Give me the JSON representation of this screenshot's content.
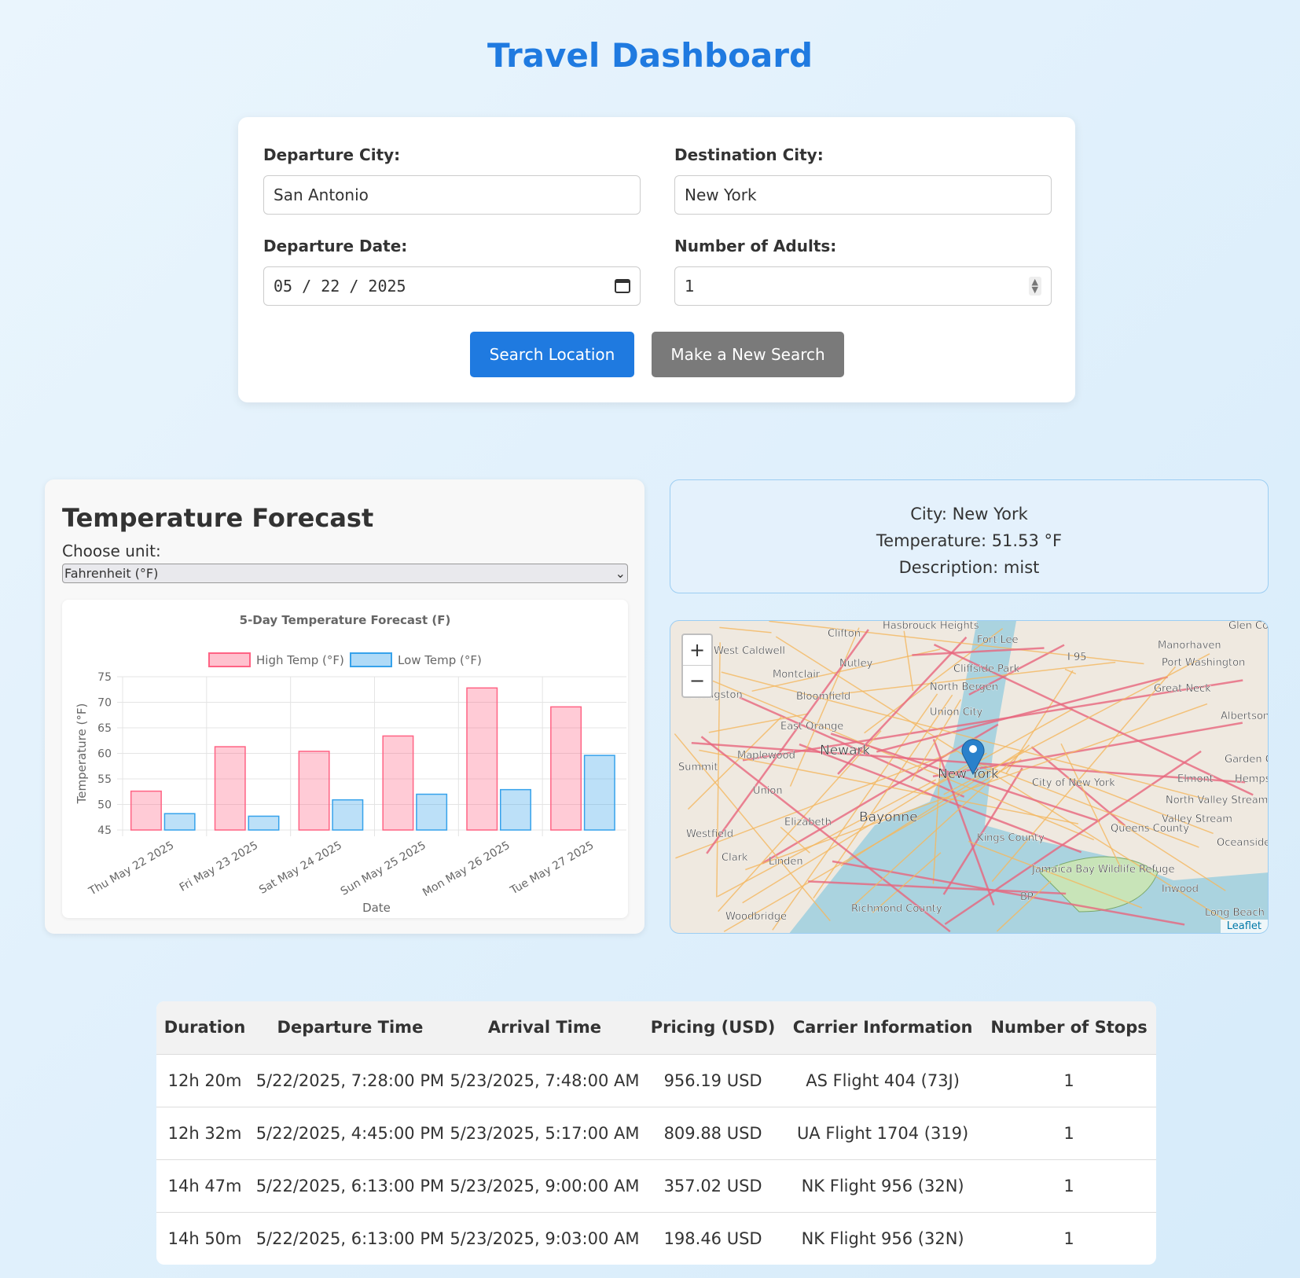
{
  "title": "Travel Dashboard",
  "form": {
    "departure_label": "Departure City:",
    "departure_value": "San Antonio",
    "destination_label": "Destination City:",
    "destination_value": "New York",
    "date_label": "Departure Date:",
    "date_value": "05 / 22 / 2025",
    "adults_label": "Number of Adults:",
    "adults_value": "1",
    "search_button": "Search Location",
    "new_search_button": "Make a New Search"
  },
  "forecast": {
    "heading": "Temperature Forecast",
    "unit_label": "Choose unit:",
    "unit_value": "Fahrenheit (°F)"
  },
  "chart_data": {
    "type": "bar",
    "title": "5-Day Temperature Forecast (F)",
    "xlabel": "Date",
    "ylabel": "Temperature (°F)",
    "ylim": [
      45,
      75
    ],
    "yticks": [
      45,
      50,
      55,
      60,
      65,
      70,
      75
    ],
    "legend": "top",
    "grid": true,
    "categories": [
      "Thu May 22 2025",
      "Fri May 23 2025",
      "Sat May 24 2025",
      "Sun May 25 2025",
      "Mon May 26 2025",
      "Tue May 27 2025"
    ],
    "series": [
      {
        "name": "High Temp (°F)",
        "color": "#ff6384",
        "values": [
          52.6,
          61.3,
          60.4,
          63.4,
          72.8,
          69.1
        ]
      },
      {
        "name": "Low Temp (°F)",
        "color": "#36a2eb",
        "values": [
          48.2,
          47.7,
          50.9,
          52.0,
          52.9,
          59.6
        ]
      }
    ]
  },
  "weather": {
    "city": "City: New York",
    "temperature": "Temperature: 51.53 °F",
    "description": "Description: mist"
  },
  "map": {
    "zoom_in": "+",
    "zoom_out": "−",
    "attribution": "Leaflet",
    "labels": [
      "Clifton",
      "Hasbrouck Heights",
      "Fort Lee",
      "West Caldwell",
      "Montclair",
      "Nutley",
      "Cliffside Park",
      "North Bergen",
      "Livingston",
      "Bloomfield",
      "Union City",
      "East Orange",
      "Newark",
      "Maplewood",
      "Summit",
      "Union",
      "Elizabeth",
      "Bayonne",
      "New York",
      "City of New York",
      "Kings County",
      "Queens County",
      "Westfield",
      "Clark",
      "Linden",
      "Woodbridge",
      "Richmond County",
      "Manorhaven",
      "Port Washington",
      "Great Neck",
      "Albertson",
      "Garden City",
      "Elmont",
      "North Valley Stream",
      "Valley Stream",
      "Oceanside",
      "Inwood",
      "Long Beach",
      "Jamaica Bay Wildlife Refuge",
      "I 95",
      "BP",
      "Glen Co",
      "Hempstead"
    ]
  },
  "table": {
    "headers": [
      "Duration",
      "Departure Time",
      "Arrival Time",
      "Pricing (USD)",
      "Carrier Information",
      "Number of Stops"
    ],
    "rows": [
      [
        "12h 20m",
        "5/22/2025, 7:28:00 PM",
        "5/23/2025, 7:48:00 AM",
        "956.19 USD",
        "AS Flight 404 (73J)",
        "1"
      ],
      [
        "12h 32m",
        "5/22/2025, 4:45:00 PM",
        "5/23/2025, 5:17:00 AM",
        "809.88 USD",
        "UA Flight 1704 (319)",
        "1"
      ],
      [
        "14h 47m",
        "5/22/2025, 6:13:00 PM",
        "5/23/2025, 9:00:00 AM",
        "357.02 USD",
        "NK Flight 956 (32N)",
        "1"
      ],
      [
        "14h 50m",
        "5/22/2025, 6:13:00 PM",
        "5/23/2025, 9:03:00 AM",
        "198.46 USD",
        "NK Flight 956 (32N)",
        "1"
      ]
    ]
  }
}
